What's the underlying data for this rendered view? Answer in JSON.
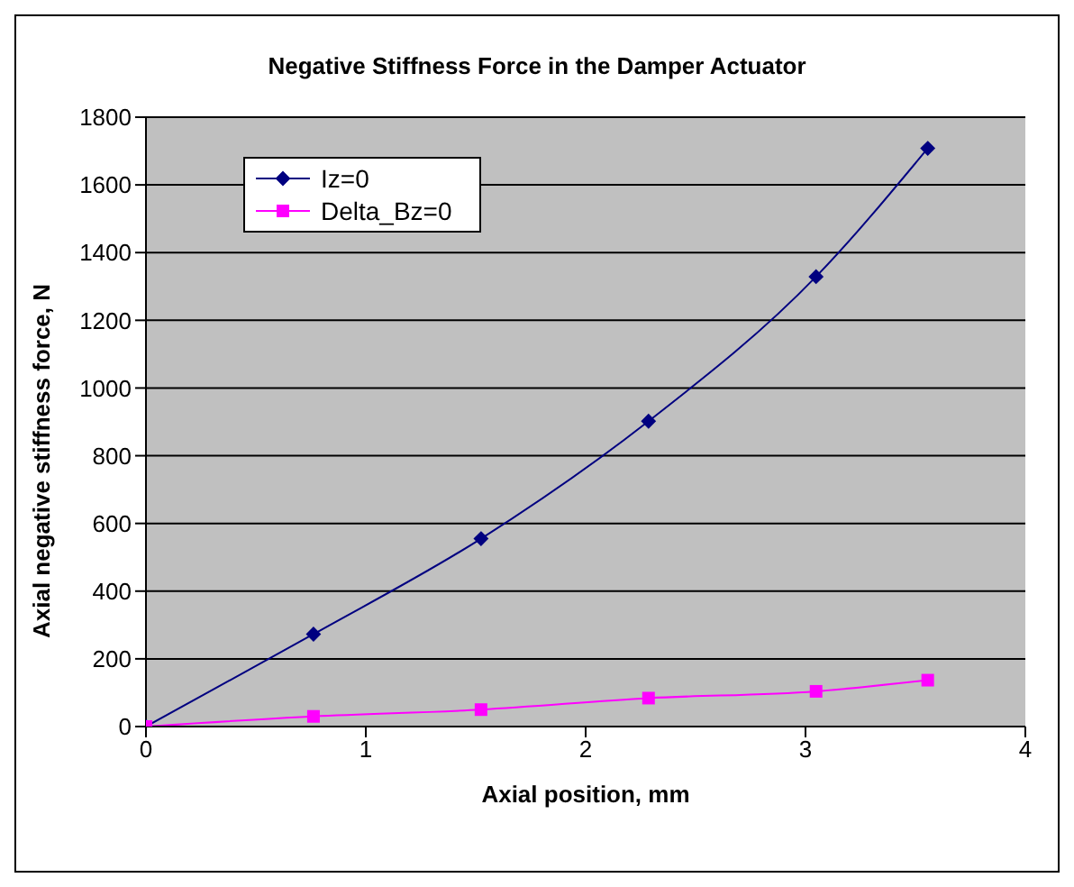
{
  "chart_data": {
    "type": "line",
    "title": "Negative Stiffness Force in the Damper Actuator",
    "xlabel": "Axial position, mm",
    "ylabel": "Axial negative stiffness force, N",
    "x": [
      0,
      0.762,
      1.524,
      2.286,
      3.048,
      3.556
    ],
    "series": [
      {
        "name": "Iz=0",
        "color": "#000080",
        "marker": "diamond",
        "values": [
          0,
          273,
          555,
          902,
          1329,
          1708
        ]
      },
      {
        "name": "Delta_Bz=0",
        "color": "#ff00ff",
        "marker": "square",
        "values": [
          0,
          30,
          50,
          84,
          104,
          137
        ]
      }
    ],
    "xlim": [
      0,
      4
    ],
    "xticks": [
      0,
      1,
      2,
      3,
      4
    ],
    "ylim": [
      0,
      1800
    ],
    "yticks": [
      0,
      200,
      400,
      600,
      800,
      1000,
      1200,
      1400,
      1600,
      1800
    ],
    "grid": "y",
    "legend": "top left",
    "line_style": "solid"
  }
}
